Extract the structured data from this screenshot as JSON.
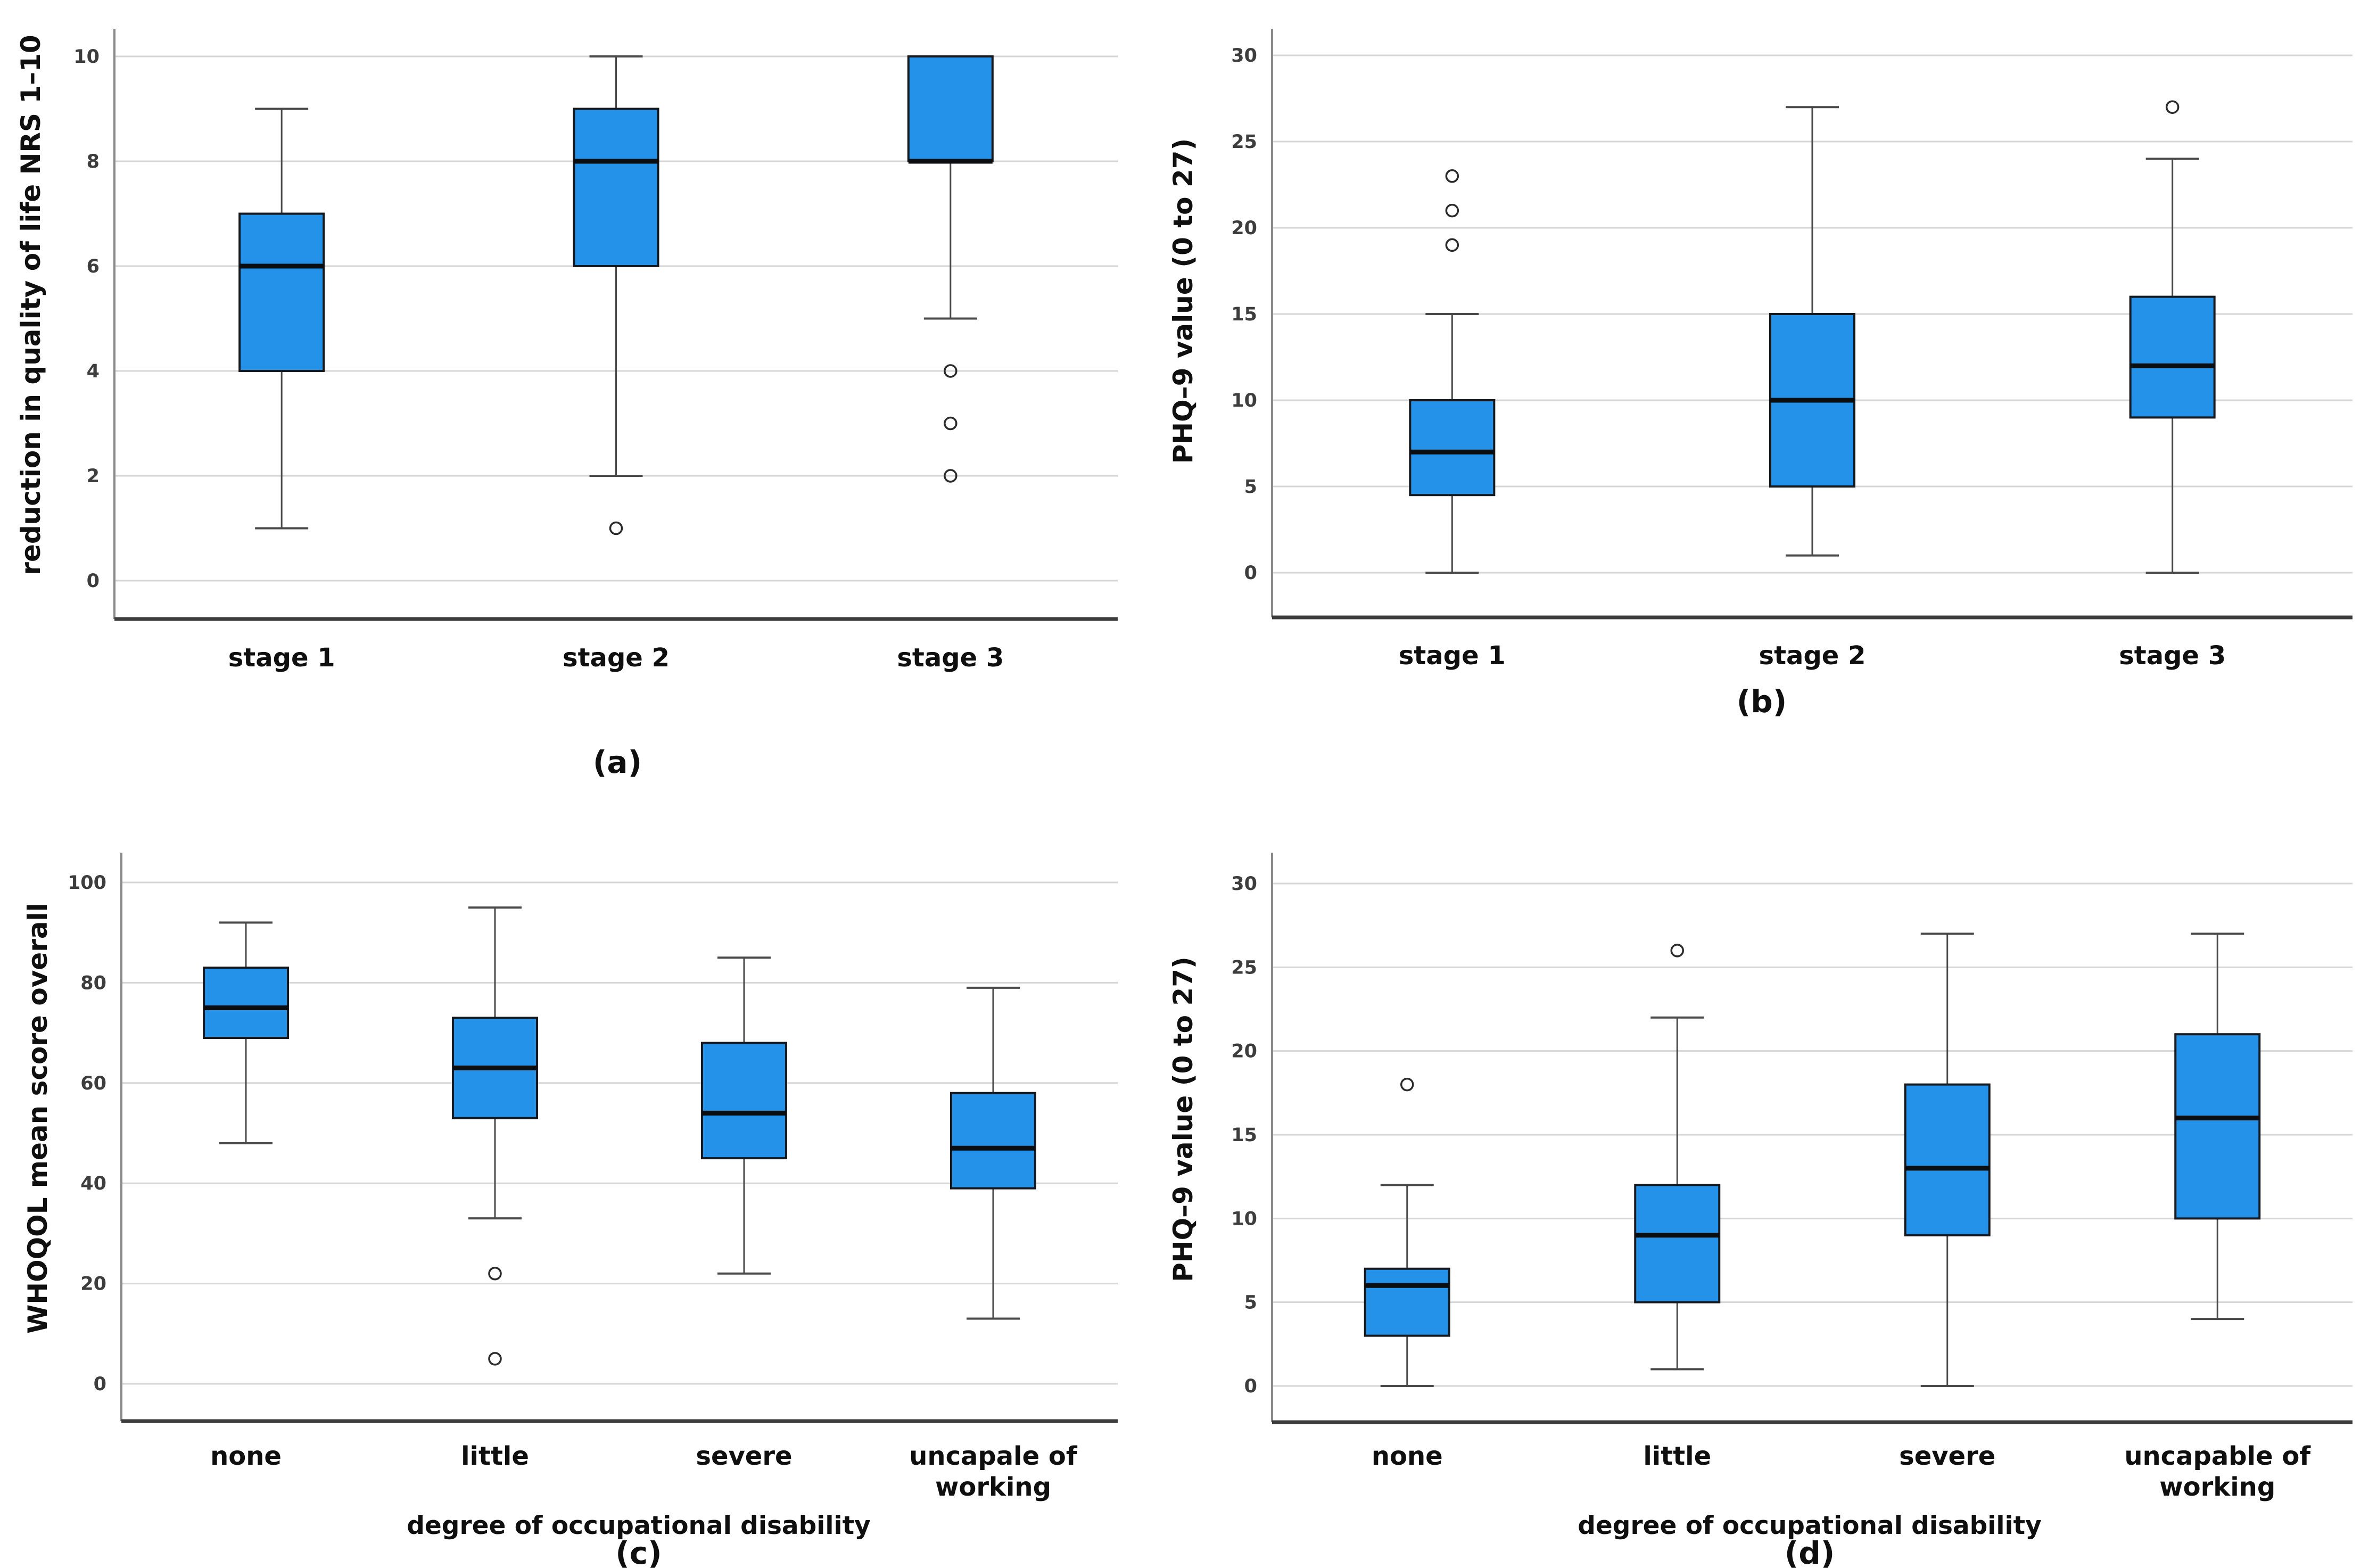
{
  "figure": {
    "background": "#ffffff",
    "panel_labels": [
      "(a)",
      "(b)",
      "(c)",
      "(d)"
    ]
  },
  "colors": {
    "box_fill": "#2492E8",
    "box_border": "#16191d",
    "median": "#0b0e11",
    "whisker": "#4a4a4a",
    "gridline": "#d6d6d6",
    "y_axis_line": "#8a8a8a",
    "baseline": "#3c3c3c",
    "label_text": "#0f0f0f",
    "tick_text": "#3d3d3d",
    "outlier_stroke": "#2a2a2a"
  },
  "chart_data": [
    {
      "type": "boxplot",
      "panel_label": "(a)",
      "ylabel": "reduction in quality of life NRS 1–10",
      "xlabel": "",
      "ylim": [
        0,
        10
      ],
      "yticks": [
        0,
        2,
        4,
        6,
        8,
        10
      ],
      "categories": [
        "stage 1",
        "stage 2",
        "stage 3"
      ],
      "boxes": [
        {
          "whislo": 1,
          "q1": 4,
          "med": 6,
          "q3": 7,
          "whishi": 9,
          "outliers": []
        },
        {
          "whislo": 2,
          "q1": 6,
          "med": 8,
          "q3": 9,
          "whishi": 10,
          "outliers": [
            1
          ]
        },
        {
          "whislo": 5,
          "q1": 8,
          "med": 8,
          "q3": 10,
          "whishi": 10,
          "outliers": [
            4,
            3,
            2
          ]
        }
      ],
      "legend": null,
      "grid": true
    },
    {
      "type": "boxplot",
      "panel_label": "(b)",
      "ylabel": "PHQ–9 value (0 to 27)",
      "xlabel": "",
      "ylim": [
        0,
        30
      ],
      "yticks": [
        0,
        5,
        10,
        15,
        20,
        25,
        30
      ],
      "categories": [
        "stage 1",
        "stage 2",
        "stage 3"
      ],
      "boxes": [
        {
          "whislo": 0,
          "q1": 4.5,
          "med": 7,
          "q3": 10,
          "whishi": 15,
          "outliers": [
            19,
            21,
            23
          ]
        },
        {
          "whislo": 1,
          "q1": 5,
          "med": 10,
          "q3": 15,
          "whishi": 27,
          "outliers": []
        },
        {
          "whislo": 0,
          "q1": 9,
          "med": 12,
          "q3": 16,
          "whishi": 24,
          "outliers": [
            27
          ]
        }
      ],
      "legend": null,
      "grid": true
    },
    {
      "type": "boxplot",
      "panel_label": "(c)",
      "ylabel": "WHOQOL mean score overall",
      "xlabel": "degree of occupational disability",
      "ylim": [
        0,
        100
      ],
      "yticks": [
        0,
        20,
        40,
        60,
        80,
        100
      ],
      "categories": [
        "none",
        "little",
        "severe",
        "uncapale of\nworking"
      ],
      "boxes": [
        {
          "whislo": 48,
          "q1": 69,
          "med": 75,
          "q3": 83,
          "whishi": 92,
          "outliers": []
        },
        {
          "whislo": 33,
          "q1": 53,
          "med": 63,
          "q3": 73,
          "whishi": 95,
          "outliers": [
            22,
            5
          ]
        },
        {
          "whislo": 22,
          "q1": 45,
          "med": 54,
          "q3": 68,
          "whishi": 85,
          "outliers": []
        },
        {
          "whislo": 13,
          "q1": 39,
          "med": 47,
          "q3": 58,
          "whishi": 79,
          "outliers": []
        }
      ],
      "legend": null,
      "grid": true
    },
    {
      "type": "boxplot",
      "panel_label": "(d)",
      "ylabel": "PHQ–9 value (0 to 27)",
      "xlabel": "degree of occupational disability",
      "ylim": [
        0,
        30
      ],
      "yticks": [
        0,
        5,
        10,
        15,
        20,
        25,
        30
      ],
      "categories": [
        "none",
        "little",
        "severe",
        "uncapable of\nworking"
      ],
      "boxes": [
        {
          "whislo": 0,
          "q1": 3,
          "med": 6,
          "q3": 7,
          "whishi": 12,
          "outliers": [
            18
          ]
        },
        {
          "whislo": 1,
          "q1": 5,
          "med": 9,
          "q3": 12,
          "whishi": 22,
          "outliers": [
            26
          ]
        },
        {
          "whislo": 0,
          "q1": 9,
          "med": 13,
          "q3": 18,
          "whishi": 27,
          "outliers": []
        },
        {
          "whislo": 4,
          "q1": 10,
          "med": 16,
          "q3": 21,
          "whishi": 27,
          "outliers": []
        }
      ],
      "legend": null,
      "grid": true
    }
  ]
}
